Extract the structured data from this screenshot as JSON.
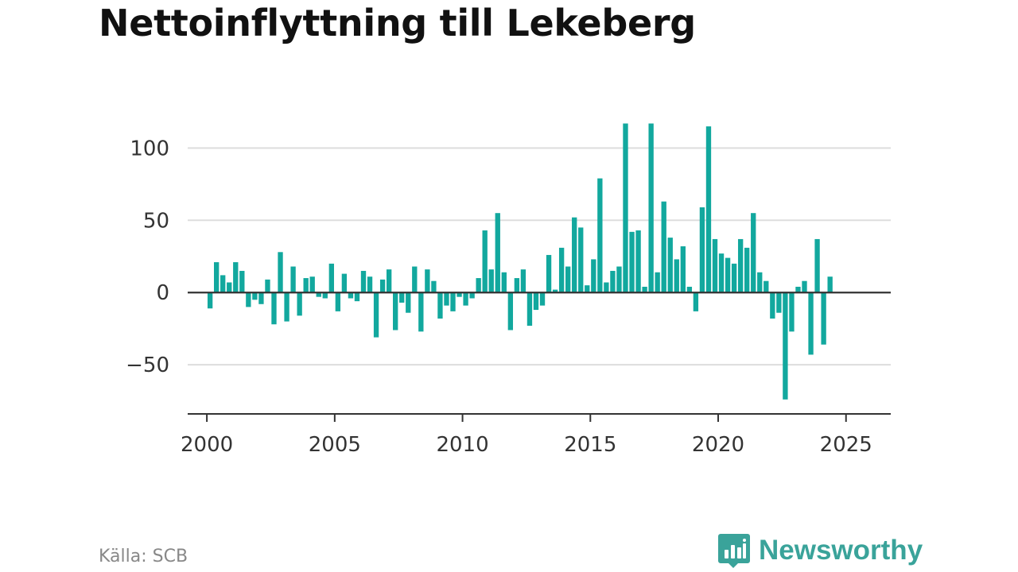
{
  "title": "Nettoinflyttning till Lekeberg",
  "source": "Källa: SCB",
  "brand": {
    "name": "Newsworthy",
    "logo_icon": "bar-chart-speech-bubble-icon"
  },
  "colors": {
    "bar": "#12a89e",
    "grid": "#dddddd",
    "axis": "#333333",
    "brand": "#3aa39a"
  },
  "chart_data": {
    "type": "bar",
    "title": "Nettoinflyttning till Lekeberg",
    "xlabel": "",
    "ylabel": "",
    "xlim": [
      1999.25,
      2026.75
    ],
    "ylim": [
      -84,
      120
    ],
    "y_ticks": [
      100,
      50,
      0,
      -50
    ],
    "y_tick_labels": [
      "100",
      "50",
      "0",
      "−50"
    ],
    "x_ticks": [
      2000,
      2005,
      2010,
      2015,
      2020,
      2025
    ],
    "x_tick_labels": [
      "2000",
      "2005",
      "2010",
      "2015",
      "2020",
      "2025"
    ],
    "grid": true,
    "frequency": "quarterly",
    "start": "2000 Q1",
    "values": [
      -11,
      21,
      12,
      7,
      21,
      15,
      -10,
      -5,
      -8,
      9,
      -22,
      28,
      -20,
      18,
      -16,
      10,
      11,
      -3,
      -4,
      20,
      -13,
      13,
      -4,
      -6,
      15,
      11,
      -31,
      9,
      16,
      -26,
      -7,
      -14,
      18,
      -27,
      16,
      8,
      -18,
      -9,
      -13,
      -3,
      -9,
      -4,
      10,
      43,
      16,
      55,
      14,
      -26,
      10,
      16,
      -23,
      -12,
      -9,
      26,
      2,
      31,
      18,
      52,
      45,
      5,
      23,
      79,
      7,
      15,
      18,
      117,
      42,
      43,
      4,
      117,
      14,
      63,
      38,
      23,
      32,
      4,
      -13,
      59,
      115,
      37,
      27,
      24,
      20,
      37,
      31,
      55,
      14,
      8,
      -18,
      -14,
      -74,
      -27,
      4,
      8,
      -43,
      37,
      -36,
      11
    ]
  }
}
